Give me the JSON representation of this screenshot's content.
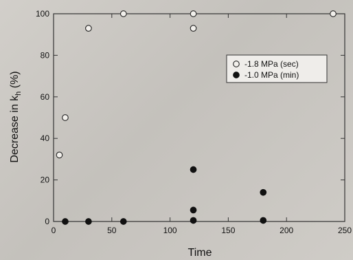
{
  "chart_data": {
    "type": "scatter",
    "xlabel": "Time",
    "ylabel_main": "Decrease in k",
    "ylabel_sub": "h",
    "ylabel_unit": " (%)",
    "xlim": [
      0,
      250
    ],
    "ylim": [
      0,
      100
    ],
    "xticks": [
      0,
      50,
      100,
      150,
      200,
      250
    ],
    "yticks": [
      0,
      20,
      40,
      60,
      80,
      100
    ],
    "grid": false,
    "legend_position": "top-right",
    "series": [
      {
        "name": "-1.8 MPa (sec)",
        "marker": "open-circle",
        "color": "#222222",
        "x": [
          5,
          10,
          30,
          60,
          120,
          120,
          240
        ],
        "y": [
          32,
          50,
          93,
          100,
          100,
          93,
          100
        ]
      },
      {
        "name": "-1.0 MPa (min)",
        "marker": "filled-circle",
        "color": "#111111",
        "x": [
          10,
          30,
          60,
          120,
          120,
          120,
          180,
          180
        ],
        "y": [
          0,
          0,
          0,
          25,
          5.5,
          0.5,
          14,
          0.5
        ]
      }
    ]
  }
}
